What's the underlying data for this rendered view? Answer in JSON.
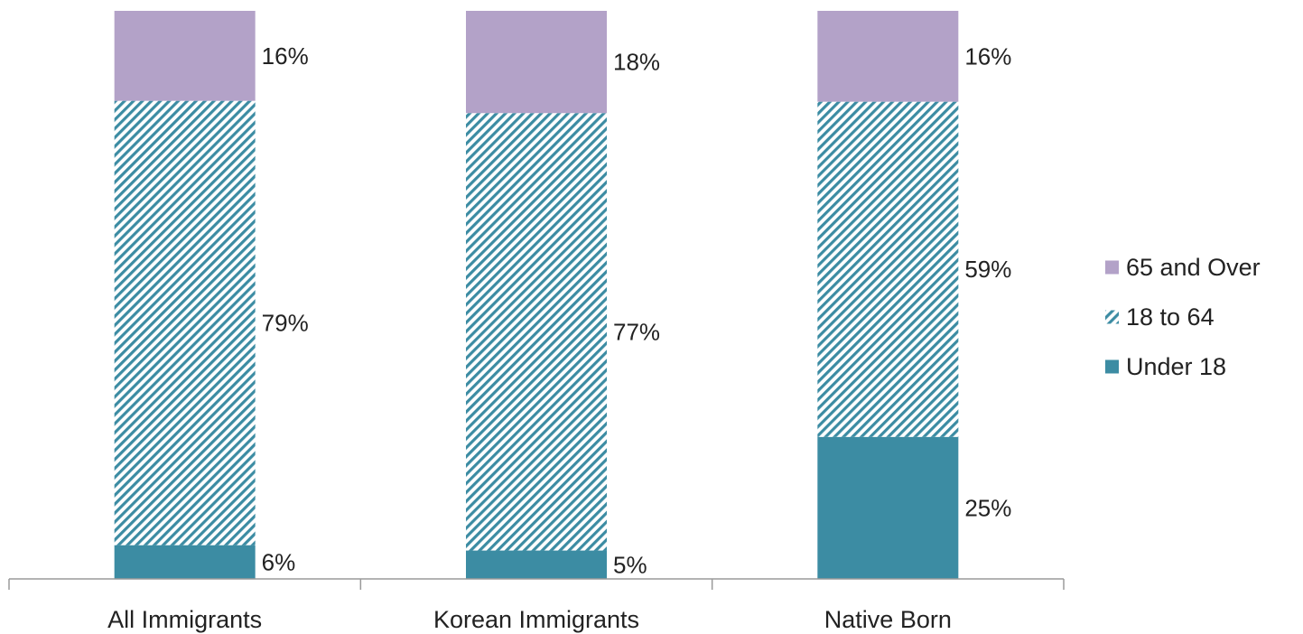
{
  "chart_data": {
    "type": "bar",
    "stacked": true,
    "percent_stacked": true,
    "categories": [
      "All Immigrants",
      "Korean Immigrants",
      "Native Born"
    ],
    "series": [
      {
        "name": "Under 18",
        "values": [
          6,
          5,
          25
        ],
        "labels": [
          "6%",
          "5%",
          "25%"
        ],
        "color": "#3c8ca3",
        "pattern": "solid"
      },
      {
        "name": "18 to 64",
        "values": [
          79,
          77,
          59
        ],
        "labels": [
          "79%",
          "77%",
          "59%"
        ],
        "color": "#3c8ca3",
        "pattern": "diagonal-hatch"
      },
      {
        "name": "65 and Over",
        "values": [
          16,
          18,
          16
        ],
        "labels": [
          "16%",
          "18%",
          "16%"
        ],
        "color": "#b3a2c8",
        "pattern": "solid"
      }
    ],
    "legend_order": [
      "65 and Over",
      "18 to 64",
      "Under 18"
    ],
    "legend_position": "right",
    "ylim": [
      0,
      100
    ],
    "grid": false,
    "yaxis_visible": false
  }
}
